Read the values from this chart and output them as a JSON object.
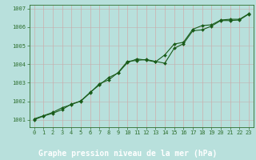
{
  "title": "Graphe pression niveau de la mer (hPa)",
  "bg_color": "#b8e0dc",
  "grid_color_v": "#d4a0a0",
  "grid_color_h": "#c0b0b0",
  "line_color": "#1a5c1a",
  "marker_color": "#1a5c1a",
  "xlim": [
    -0.5,
    23.5
  ],
  "ylim": [
    1000.6,
    1007.2
  ],
  "yticks": [
    1001,
    1002,
    1003,
    1004,
    1005,
    1006,
    1007
  ],
  "xticks": [
    0,
    1,
    2,
    3,
    4,
    5,
    6,
    7,
    8,
    9,
    10,
    11,
    12,
    13,
    14,
    15,
    16,
    17,
    18,
    19,
    20,
    21,
    22,
    23
  ],
  "line1_x": [
    0,
    1,
    2,
    3,
    4,
    5,
    6,
    7,
    8,
    9,
    10,
    11,
    12,
    13,
    14,
    15,
    16,
    17,
    18,
    19,
    20,
    21,
    22,
    23
  ],
  "line1_y": [
    1001.0,
    1001.2,
    1001.35,
    1001.55,
    1001.85,
    1002.0,
    1002.45,
    1002.95,
    1003.15,
    1003.55,
    1004.15,
    1004.2,
    1004.25,
    1004.15,
    1004.05,
    1004.85,
    1005.1,
    1005.8,
    1005.85,
    1006.05,
    1006.35,
    1006.35,
    1006.38,
    1006.7
  ],
  "line2_x": [
    0,
    1,
    2,
    3,
    4,
    5,
    6,
    7,
    8,
    9,
    10,
    11,
    12,
    13,
    14,
    15,
    16,
    17,
    18,
    19,
    20,
    21,
    22,
    23
  ],
  "line2_y": [
    1001.05,
    1001.22,
    1001.4,
    1001.65,
    1001.82,
    1002.02,
    1002.48,
    1002.88,
    1003.28,
    1003.52,
    1004.08,
    1004.28,
    1004.22,
    1004.12,
    1004.5,
    1005.08,
    1005.18,
    1005.88,
    1006.08,
    1006.12,
    1006.38,
    1006.42,
    1006.42,
    1006.72
  ],
  "title_fontsize": 7,
  "tick_fontsize": 5,
  "title_color": "#1a5c1a",
  "outer_bg": "#b8e0dc",
  "axis_color": "#2d6e2d",
  "bottom_bar_color": "#2d6e2d"
}
